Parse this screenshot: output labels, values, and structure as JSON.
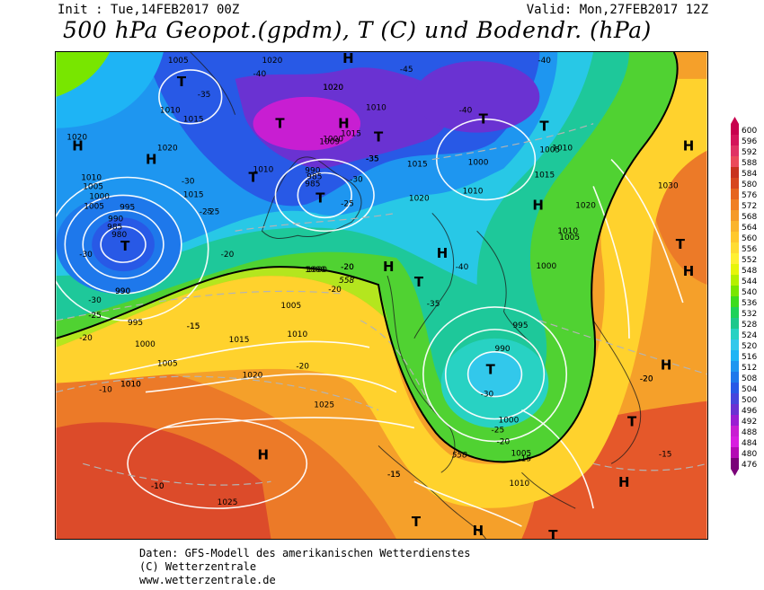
{
  "header": {
    "init": "Init : Tue,14FEB2017 00Z",
    "valid": "Valid: Mon,27FEB2017 12Z",
    "title": "500 hPa Geopot.(gpdm), T (C) und Bodendr. (hPa)"
  },
  "footer": {
    "line1": "Daten: GFS-Modell des amerikanischen Wetterdienstes",
    "line2": "(C) Wetterzentrale",
    "line3": "www.wetterzentrale.de"
  },
  "legend": {
    "levels": [
      "600",
      "596",
      "592",
      "588",
      "584",
      "580",
      "576",
      "572",
      "568",
      "564",
      "560",
      "556",
      "552",
      "548",
      "544",
      "540",
      "536",
      "532",
      "528",
      "524",
      "520",
      "516",
      "512",
      "508",
      "504",
      "500",
      "496",
      "492",
      "488",
      "484",
      "480",
      "476"
    ],
    "colors": [
      "#c8004e",
      "#d4145a",
      "#e03264",
      "#eb4a5a",
      "#c8321e",
      "#d7461e",
      "#e6641e",
      "#f07f23",
      "#f59a28",
      "#fab42d",
      "#ffc82d",
      "#ffdc32",
      "#fff032",
      "#e6f50a",
      "#b4f000",
      "#78e600",
      "#3cdc1e",
      "#1ed25a",
      "#1ec88c",
      "#28d2c3",
      "#32c8eb",
      "#1eb4f5",
      "#1e96f0",
      "#1e78eb",
      "#2859e6",
      "#4646dc",
      "#6a32d2",
      "#9a1ed2",
      "#c81ed2",
      "#d81ee0",
      "#b40ab4",
      "#7a0078"
    ]
  },
  "map": {
    "high_label": "H",
    "low_label": "T",
    "pressure_labels": [
      "1005",
      "1020",
      "1020",
      "1010",
      "1015",
      "1020",
      "1005",
      "1010",
      "990",
      "985",
      "980",
      "1010",
      "1015",
      "1020",
      "1030",
      "1005",
      "1000",
      "995",
      "990",
      "985",
      "1020",
      "990",
      "985",
      "1000",
      "1009",
      "1010",
      "1015",
      "1015",
      "1020",
      "1000",
      "1010",
      "1005",
      "1010",
      "1000",
      "1010",
      "1005",
      "1015",
      "1020",
      "1025",
      "1025",
      "995",
      "990",
      "1000",
      "1005",
      "1010",
      "1000",
      "1005",
      "1010",
      "1020",
      "1010",
      "1015",
      "1005",
      "1000",
      "1010",
      "990",
      "995",
      "1000"
    ],
    "temp_labels": [
      "-40",
      "-35",
      "-45",
      "-40",
      "-40",
      "-30",
      "-35",
      "-35",
      "-30",
      "-25",
      "-25",
      "-20",
      "-20",
      "-20",
      "-25",
      "-35",
      "-40",
      "-35",
      "-30",
      "-25",
      "-30",
      "-30",
      "-25",
      "-20",
      "-15",
      "-20",
      "-15",
      "-10",
      "-20",
      "-10",
      "-15",
      "-15",
      "-20",
      "-15",
      "-10",
      "-20",
      "-15",
      "-20"
    ],
    "contour_558": "558"
  }
}
